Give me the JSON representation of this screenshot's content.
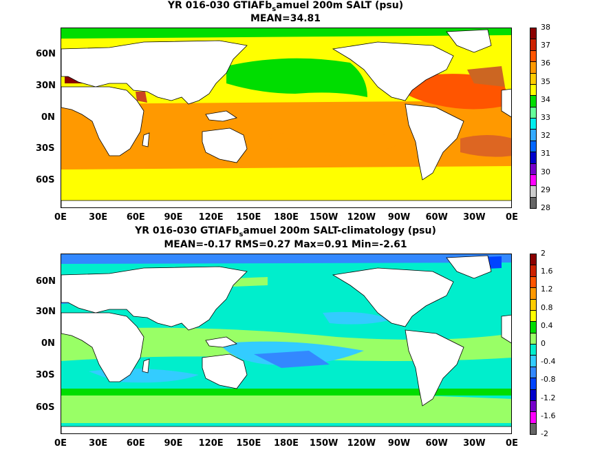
{
  "panels": [
    {
      "title_line1_pre": "YR 016-030 GTIAFb",
      "title_sub": "s",
      "title_line1_post": "amuel 200m SALT (psu)",
      "title_line2": "MEAN=34.81",
      "colorbar": {
        "labels": [
          "38",
          "37",
          "36",
          "35",
          "34",
          "33",
          "32",
          "31",
          "30",
          "29",
          "28"
        ],
        "colors": [
          "#8b0000",
          "#cc2200",
          "#ff5500",
          "#ff9900",
          "#ffcc00",
          "#ffff00",
          "#00dd00",
          "#66ff99",
          "#00eeee",
          "#33aaff",
          "#0066ff",
          "#0000cc",
          "#7700cc",
          "#ff00ff",
          "#cccccc",
          "#666666"
        ]
      }
    },
    {
      "title_line1_pre": "YR 016-030 GTIAFb",
      "title_sub": "s",
      "title_line1_post": "amuel 200m SALT-climatology (psu)",
      "title_line2": "MEAN=-0.17   RMS=0.27   Max=0.91   Min=-2.61",
      "colorbar": {
        "labels": [
          "2",
          "1.6",
          "1.2",
          "0.8",
          "0.4",
          "0",
          "-0.4",
          "-0.8",
          "-1.2",
          "-1.6",
          "-2"
        ],
        "colors": [
          "#8b0000",
          "#cc2200",
          "#ff5500",
          "#ff9900",
          "#ffcc00",
          "#ffff00",
          "#00dd00",
          "#99ff66",
          "#00eecc",
          "#33ccff",
          "#3388ff",
          "#0044ff",
          "#0000cc",
          "#7700cc",
          "#ff00ff",
          "#666666"
        ]
      }
    }
  ],
  "axes": {
    "y_ticks": [
      "60N",
      "30N",
      "0N",
      "30S",
      "60S"
    ],
    "x_ticks": [
      "0E",
      "30E",
      "60E",
      "90E",
      "120E",
      "150E",
      "180E",
      "150W",
      "120W",
      "90W",
      "60W",
      "30W",
      "0E"
    ]
  }
}
